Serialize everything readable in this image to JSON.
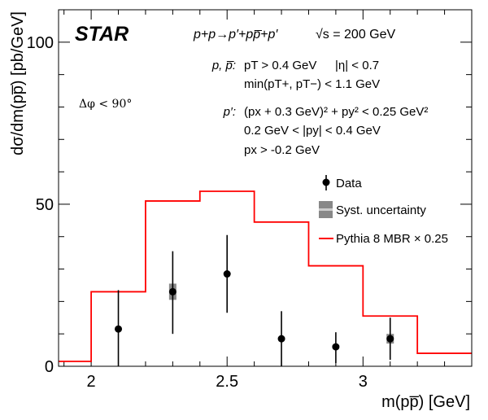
{
  "chart_data": {
    "type": "scatter",
    "xlabel": "m(pp̅) [GeV]",
    "ylabel": "dσ/dm(pp̅) [pb/GeV]",
    "xlim": [
      1.88,
      3.4
    ],
    "ylim": [
      0,
      110
    ],
    "x_ticks": [
      "2",
      "2.5",
      "3"
    ],
    "x_tick_values": [
      2.0,
      2.5,
      3.0
    ],
    "y_ticks": [
      "0",
      "50",
      "100"
    ],
    "y_tick_values": [
      0,
      50,
      100
    ],
    "grid": false,
    "legend_position": "right-middle",
    "series": [
      {
        "name": "Data",
        "kind": "points",
        "x": [
          2.1,
          2.3,
          2.5,
          2.7,
          2.9,
          3.1
        ],
        "y": [
          11.5,
          23.0,
          28.5,
          8.5,
          6.0,
          8.5
        ],
        "err_low": [
          11.5,
          13.0,
          12.0,
          8.5,
          5.0,
          6.5
        ],
        "err_high": [
          12.0,
          12.5,
          12.0,
          8.5,
          4.5,
          6.5
        ],
        "syst_low": [
          0,
          2.5,
          0,
          0,
          0,
          1.5
        ],
        "syst_high": [
          0,
          2.5,
          0,
          0,
          0,
          1.5
        ],
        "color": "#000000"
      },
      {
        "name": "Pythia 8 MBR × 0.25",
        "kind": "step",
        "edges": [
          1.88,
          2.0,
          2.2,
          2.4,
          2.6,
          2.8,
          3.0,
          3.2,
          3.4
        ],
        "values": [
          1.5,
          23.0,
          51.0,
          54.0,
          44.5,
          31.0,
          15.5,
          4.0
        ],
        "color": "#ff0000"
      }
    ],
    "legend": {
      "data_label": "Data",
      "syst_label": "Syst. uncertainty",
      "model_label": "Pythia 8 MBR × 0.25"
    },
    "syst_color": "#888888"
  },
  "labels": {
    "experiment": "STAR",
    "process": "p+p→p′+pp̅+p′",
    "energy": "√s = 200 GeV",
    "dphi": "Δφ < 90°",
    "pp_label": "p, p̅:",
    "pp_cut1": "pT > 0.4 GeV",
    "pp_cut1b": "|η| < 0.7",
    "pp_cut2": "min(pT+, pT−) < 1.1 GeV",
    "fwd_label": "p′:",
    "fwd_cut1": "(px + 0.3 GeV)² + py² < 0.25 GeV²",
    "fwd_cut2": "0.2 GeV < |py| < 0.4 GeV",
    "fwd_cut3": "px > -0.2 GeV"
  }
}
